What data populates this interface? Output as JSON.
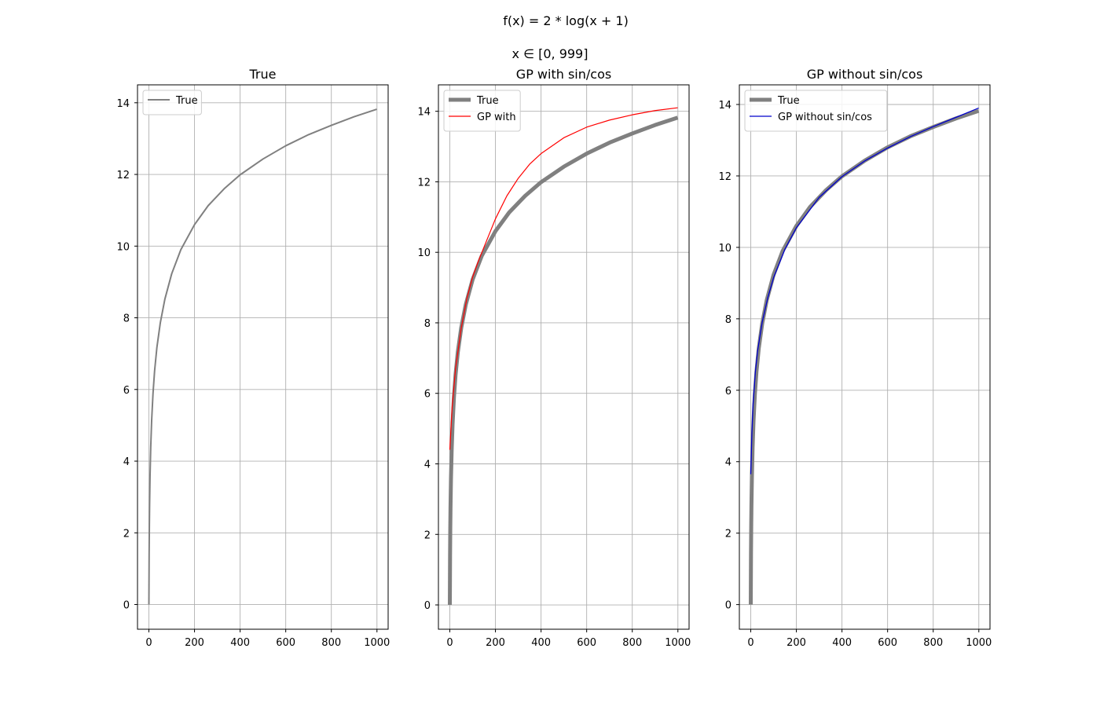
{
  "figure": {
    "title_line1": "f(x) = 2 * log(x + 1)",
    "title_line2": "x ∈ [0, 999]"
  },
  "colors": {
    "true": "#808080",
    "gp_with": "#ff0000",
    "gp_without": "#0000cc",
    "grid": "#b0b0b0"
  },
  "chart_data": [
    {
      "type": "line",
      "title": "True",
      "xlim": [
        -50,
        1049
      ],
      "ylim": [
        -0.69,
        14.5
      ],
      "xticks": [
        0,
        200,
        400,
        600,
        800,
        1000
      ],
      "yticks": [
        0,
        2,
        4,
        6,
        8,
        10,
        12,
        14
      ],
      "grid": true,
      "legend": "upper left",
      "series": [
        {
          "name": "True",
          "color": "#808080",
          "x": [
            0,
            1,
            2,
            3,
            5,
            8,
            12,
            18,
            25,
            35,
            50,
            70,
            100,
            140,
            200,
            260,
            330,
            400,
            500,
            600,
            700,
            800,
            900,
            999
          ],
          "y": [
            0.0,
            1.39,
            2.2,
            2.77,
            3.58,
            4.39,
            5.13,
            5.89,
            6.52,
            7.17,
            7.86,
            8.52,
            9.23,
            9.9,
            10.6,
            11.13,
            11.6,
            11.99,
            12.43,
            12.8,
            13.11,
            13.37,
            13.61,
            13.82
          ]
        }
      ]
    },
    {
      "type": "line",
      "title": "GP with sin/cos",
      "xlim": [
        -50,
        1049
      ],
      "ylim": [
        -0.69,
        14.75
      ],
      "xticks": [
        0,
        200,
        400,
        600,
        800,
        1000
      ],
      "yticks": [
        0,
        2,
        4,
        6,
        8,
        10,
        12,
        14
      ],
      "grid": true,
      "legend": "upper left",
      "series": [
        {
          "name": "True",
          "color": "#808080",
          "x": [
            0,
            1,
            2,
            3,
            5,
            8,
            12,
            18,
            25,
            35,
            50,
            70,
            100,
            140,
            200,
            260,
            330,
            400,
            500,
            600,
            700,
            800,
            900,
            999
          ],
          "y": [
            0.0,
            1.39,
            2.2,
            2.77,
            3.58,
            4.39,
            5.13,
            5.89,
            6.52,
            7.17,
            7.86,
            8.52,
            9.23,
            9.9,
            10.6,
            11.13,
            11.6,
            11.99,
            12.43,
            12.8,
            13.11,
            13.37,
            13.61,
            13.82
          ]
        },
        {
          "name": "GP with",
          "color": "#ff0000",
          "x": [
            0,
            10,
            25,
            50,
            75,
            100,
            125,
            150,
            200,
            250,
            300,
            350,
            400,
            500,
            600,
            700,
            800,
            900,
            999
          ],
          "y": [
            4.4,
            5.6,
            6.7,
            7.85,
            8.7,
            9.3,
            9.75,
            10.15,
            10.95,
            11.6,
            12.1,
            12.5,
            12.8,
            13.25,
            13.55,
            13.75,
            13.9,
            14.02,
            14.1
          ]
        }
      ]
    },
    {
      "type": "line",
      "title": "GP without sin/cos",
      "xlim": [
        -50,
        1049
      ],
      "ylim": [
        -0.69,
        14.55
      ],
      "xticks": [
        0,
        200,
        400,
        600,
        800,
        1000
      ],
      "yticks": [
        0,
        2,
        4,
        6,
        8,
        10,
        12,
        14
      ],
      "grid": true,
      "legend": "upper left",
      "series": [
        {
          "name": "True",
          "color": "#808080",
          "x": [
            0,
            1,
            2,
            3,
            5,
            8,
            12,
            18,
            25,
            35,
            50,
            70,
            100,
            140,
            200,
            260,
            330,
            400,
            500,
            600,
            700,
            800,
            900,
            999
          ],
          "y": [
            0.0,
            1.39,
            2.2,
            2.77,
            3.58,
            4.39,
            5.13,
            5.89,
            6.52,
            7.17,
            7.86,
            8.52,
            9.23,
            9.9,
            10.6,
            11.13,
            11.6,
            11.99,
            12.43,
            12.8,
            13.11,
            13.37,
            13.61,
            13.82
          ]
        },
        {
          "name": "GP without sin/cos",
          "color": "#0000cc",
          "x": [
            0,
            5,
            10,
            20,
            30,
            50,
            75,
            100,
            150,
            200,
            300,
            400,
            500,
            600,
            700,
            800,
            900,
            999
          ],
          "y": [
            3.65,
            4.8,
            5.6,
            6.5,
            7.1,
            7.9,
            8.6,
            9.15,
            9.95,
            10.55,
            11.4,
            11.98,
            12.42,
            12.78,
            13.1,
            13.38,
            13.64,
            13.9
          ]
        }
      ]
    }
  ]
}
